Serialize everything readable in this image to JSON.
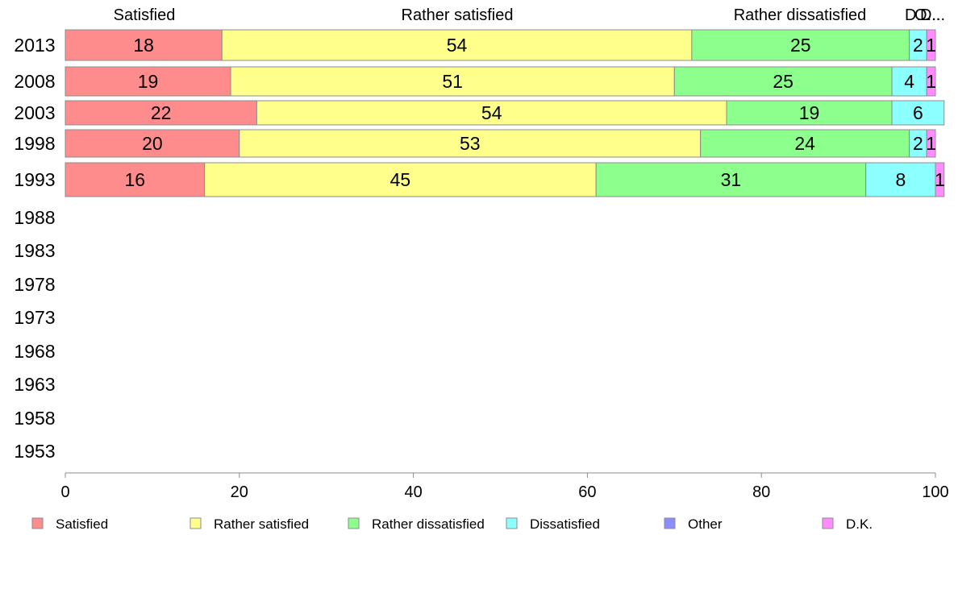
{
  "chart_data": {
    "type": "bar",
    "orientation": "horizontal",
    "stacked": true,
    "categories": [
      "2013",
      "2008",
      "2003",
      "1998",
      "1993",
      "1988",
      "1983",
      "1978",
      "1973",
      "1968",
      "1963",
      "1958",
      "1953"
    ],
    "series": [
      {
        "name": "Satisfied",
        "color": "#ff8c8c",
        "values": [
          18,
          19,
          22,
          20,
          16,
          null,
          null,
          null,
          null,
          null,
          null,
          null,
          null
        ]
      },
      {
        "name": "Rather satisfied",
        "color": "#ffff8c",
        "values": [
          54,
          51,
          54,
          53,
          45,
          null,
          null,
          null,
          null,
          null,
          null,
          null,
          null
        ]
      },
      {
        "name": "Rather dissatisfied",
        "color": "#8cff8c",
        "values": [
          25,
          25,
          19,
          24,
          31,
          null,
          null,
          null,
          null,
          null,
          null,
          null,
          null
        ]
      },
      {
        "name": "Dissatisfied",
        "color": "#8cffff",
        "values": [
          2,
          4,
          6,
          2,
          8,
          null,
          null,
          null,
          null,
          null,
          null,
          null,
          null
        ]
      },
      {
        "name": "Other",
        "color": "#8c8cff",
        "values": [
          0,
          0,
          0,
          0,
          0,
          null,
          null,
          null,
          null,
          null,
          null,
          null,
          null
        ]
      },
      {
        "name": "D.K.",
        "color": "#ff8cff",
        "values": [
          1,
          1,
          0,
          1,
          1,
          null,
          null,
          null,
          null,
          null,
          null,
          null,
          null
        ]
      }
    ],
    "top_labels": [
      "Satisfied",
      "Rather satisfied",
      "Rather dissatisfied",
      "D...",
      "O...",
      "D..."
    ],
    "xlim": [
      0,
      100
    ],
    "xticks": [
      0,
      20,
      40,
      60,
      80,
      100
    ],
    "grid": false,
    "legend_position": "bottom"
  }
}
